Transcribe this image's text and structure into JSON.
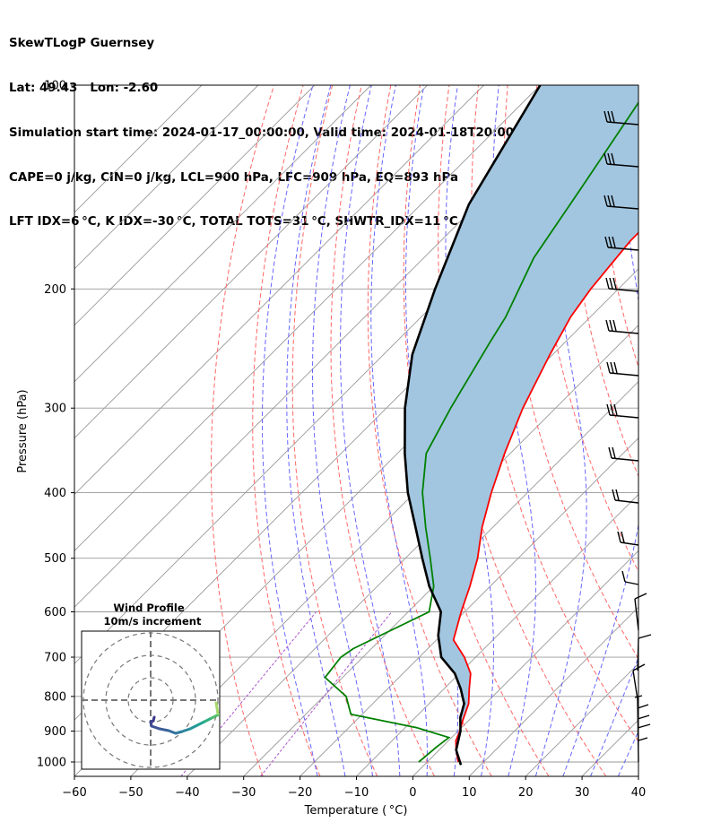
{
  "header": {
    "line1": "SkewTLogP Guernsey",
    "line2": "Lat: 49.43   Lon: -2.60",
    "line3": "Simulation start time: 2024-01-17_00:00:00, Valid time: 2024-01-18T20:00:00.00",
    "line4": "CAPE=0 j/kg, CIN=0 j/kg, LCL=900 hPa, LFC=909 hPa, EQ=893 hPa",
    "line5": "LFT IDX=6 °C, K IDX=-30 °C, TOTAL TOTS=31 °C, SHWTR_IDX=11 °C"
  },
  "colors": {
    "temperature": "#ff0000",
    "dewpoint": "#008000",
    "parcel": "#000000",
    "cape_fill": "#a2c6e0",
    "dry_adiabat": "#ff6666",
    "moist_adiabat": "#6666ff",
    "mixing_ratio": "#aa55cc",
    "isotherm": "#999999"
  },
  "chart_data": {
    "type": "line",
    "subtype": "skew-T log-P",
    "xlabel": "Temperature ( °C)",
    "ylabel": "Pressure (hPa)",
    "xlim": [
      -60,
      40
    ],
    "ylim": [
      1050,
      100
    ],
    "y_scale": "log",
    "x_ticks": [
      "−60",
      "−50",
      "−40",
      "−30",
      "−20",
      "−10",
      "0",
      "10",
      "20",
      "30",
      "40"
    ],
    "y_ticks": [
      100,
      200,
      300,
      400,
      500,
      600,
      700,
      800,
      900,
      1000
    ],
    "grid": true,
    "series": [
      {
        "key": "temperature",
        "points": [
          [
            5.5,
            1000
          ],
          [
            3.0,
            960
          ],
          [
            1.3,
            930
          ],
          [
            0.3,
            900
          ],
          [
            -1.0,
            870
          ],
          [
            -3.0,
            820
          ],
          [
            -5.5,
            780
          ],
          [
            -8.0,
            740
          ],
          [
            -12.0,
            700
          ],
          [
            -17.0,
            660
          ],
          [
            -20.6,
            600
          ],
          [
            -23.6,
            550
          ],
          [
            -27.2,
            500
          ],
          [
            -31.9,
            450
          ],
          [
            -36.4,
            400
          ],
          [
            -41.0,
            350
          ],
          [
            -45.8,
            300
          ],
          [
            -50.5,
            250
          ],
          [
            -53.5,
            220
          ],
          [
            -54.9,
            200
          ],
          [
            -56.4,
            170
          ],
          [
            -56.5,
            140
          ],
          [
            -55.2,
            120
          ],
          [
            -54.0,
            100
          ]
        ]
      },
      {
        "key": "dewpoint",
        "points": [
          [
            -1.5,
            1000
          ],
          [
            -1.0,
            950
          ],
          [
            -0.5,
            920
          ],
          [
            -7.9,
            890
          ],
          [
            -22.0,
            850
          ],
          [
            -26.0,
            800
          ],
          [
            -33.1,
            750
          ],
          [
            -33.9,
            700
          ],
          [
            -33.2,
            680
          ],
          [
            -26.3,
            600
          ],
          [
            -30.0,
            550
          ],
          [
            -35.6,
            500
          ],
          [
            -41.9,
            450
          ],
          [
            -48.6,
            400
          ],
          [
            -54.9,
            350
          ],
          [
            -58.6,
            300
          ],
          [
            -63.3,
            240
          ],
          [
            -65.0,
            220
          ],
          [
            -70.5,
            180
          ],
          [
            -74.7,
            140
          ],
          [
            -80.5,
            100
          ]
        ]
      },
      {
        "key": "parcel",
        "points": [
          [
            6.5,
            1010
          ],
          [
            3.0,
            960
          ],
          [
            0.4,
            900
          ],
          [
            -2.0,
            860
          ],
          [
            -3.8,
            820
          ],
          [
            -7.0,
            780
          ],
          [
            -10.8,
            740
          ],
          [
            -16.1,
            700
          ],
          [
            -20.5,
            650
          ],
          [
            -24.2,
            600
          ],
          [
            -30.8,
            550
          ],
          [
            -37.0,
            500
          ],
          [
            -43.7,
            450
          ],
          [
            -51.2,
            400
          ],
          [
            -58.7,
            350
          ],
          [
            -66.7,
            300
          ],
          [
            -74.9,
            250
          ],
          [
            -82.5,
            200
          ],
          [
            -91.5,
            150
          ],
          [
            -100.0,
            100
          ]
        ]
      }
    ],
    "wind_barbs_label": "",
    "wind_profile": {
      "title": "Wind Profile",
      "subtitle": "10m/s increment"
    }
  }
}
